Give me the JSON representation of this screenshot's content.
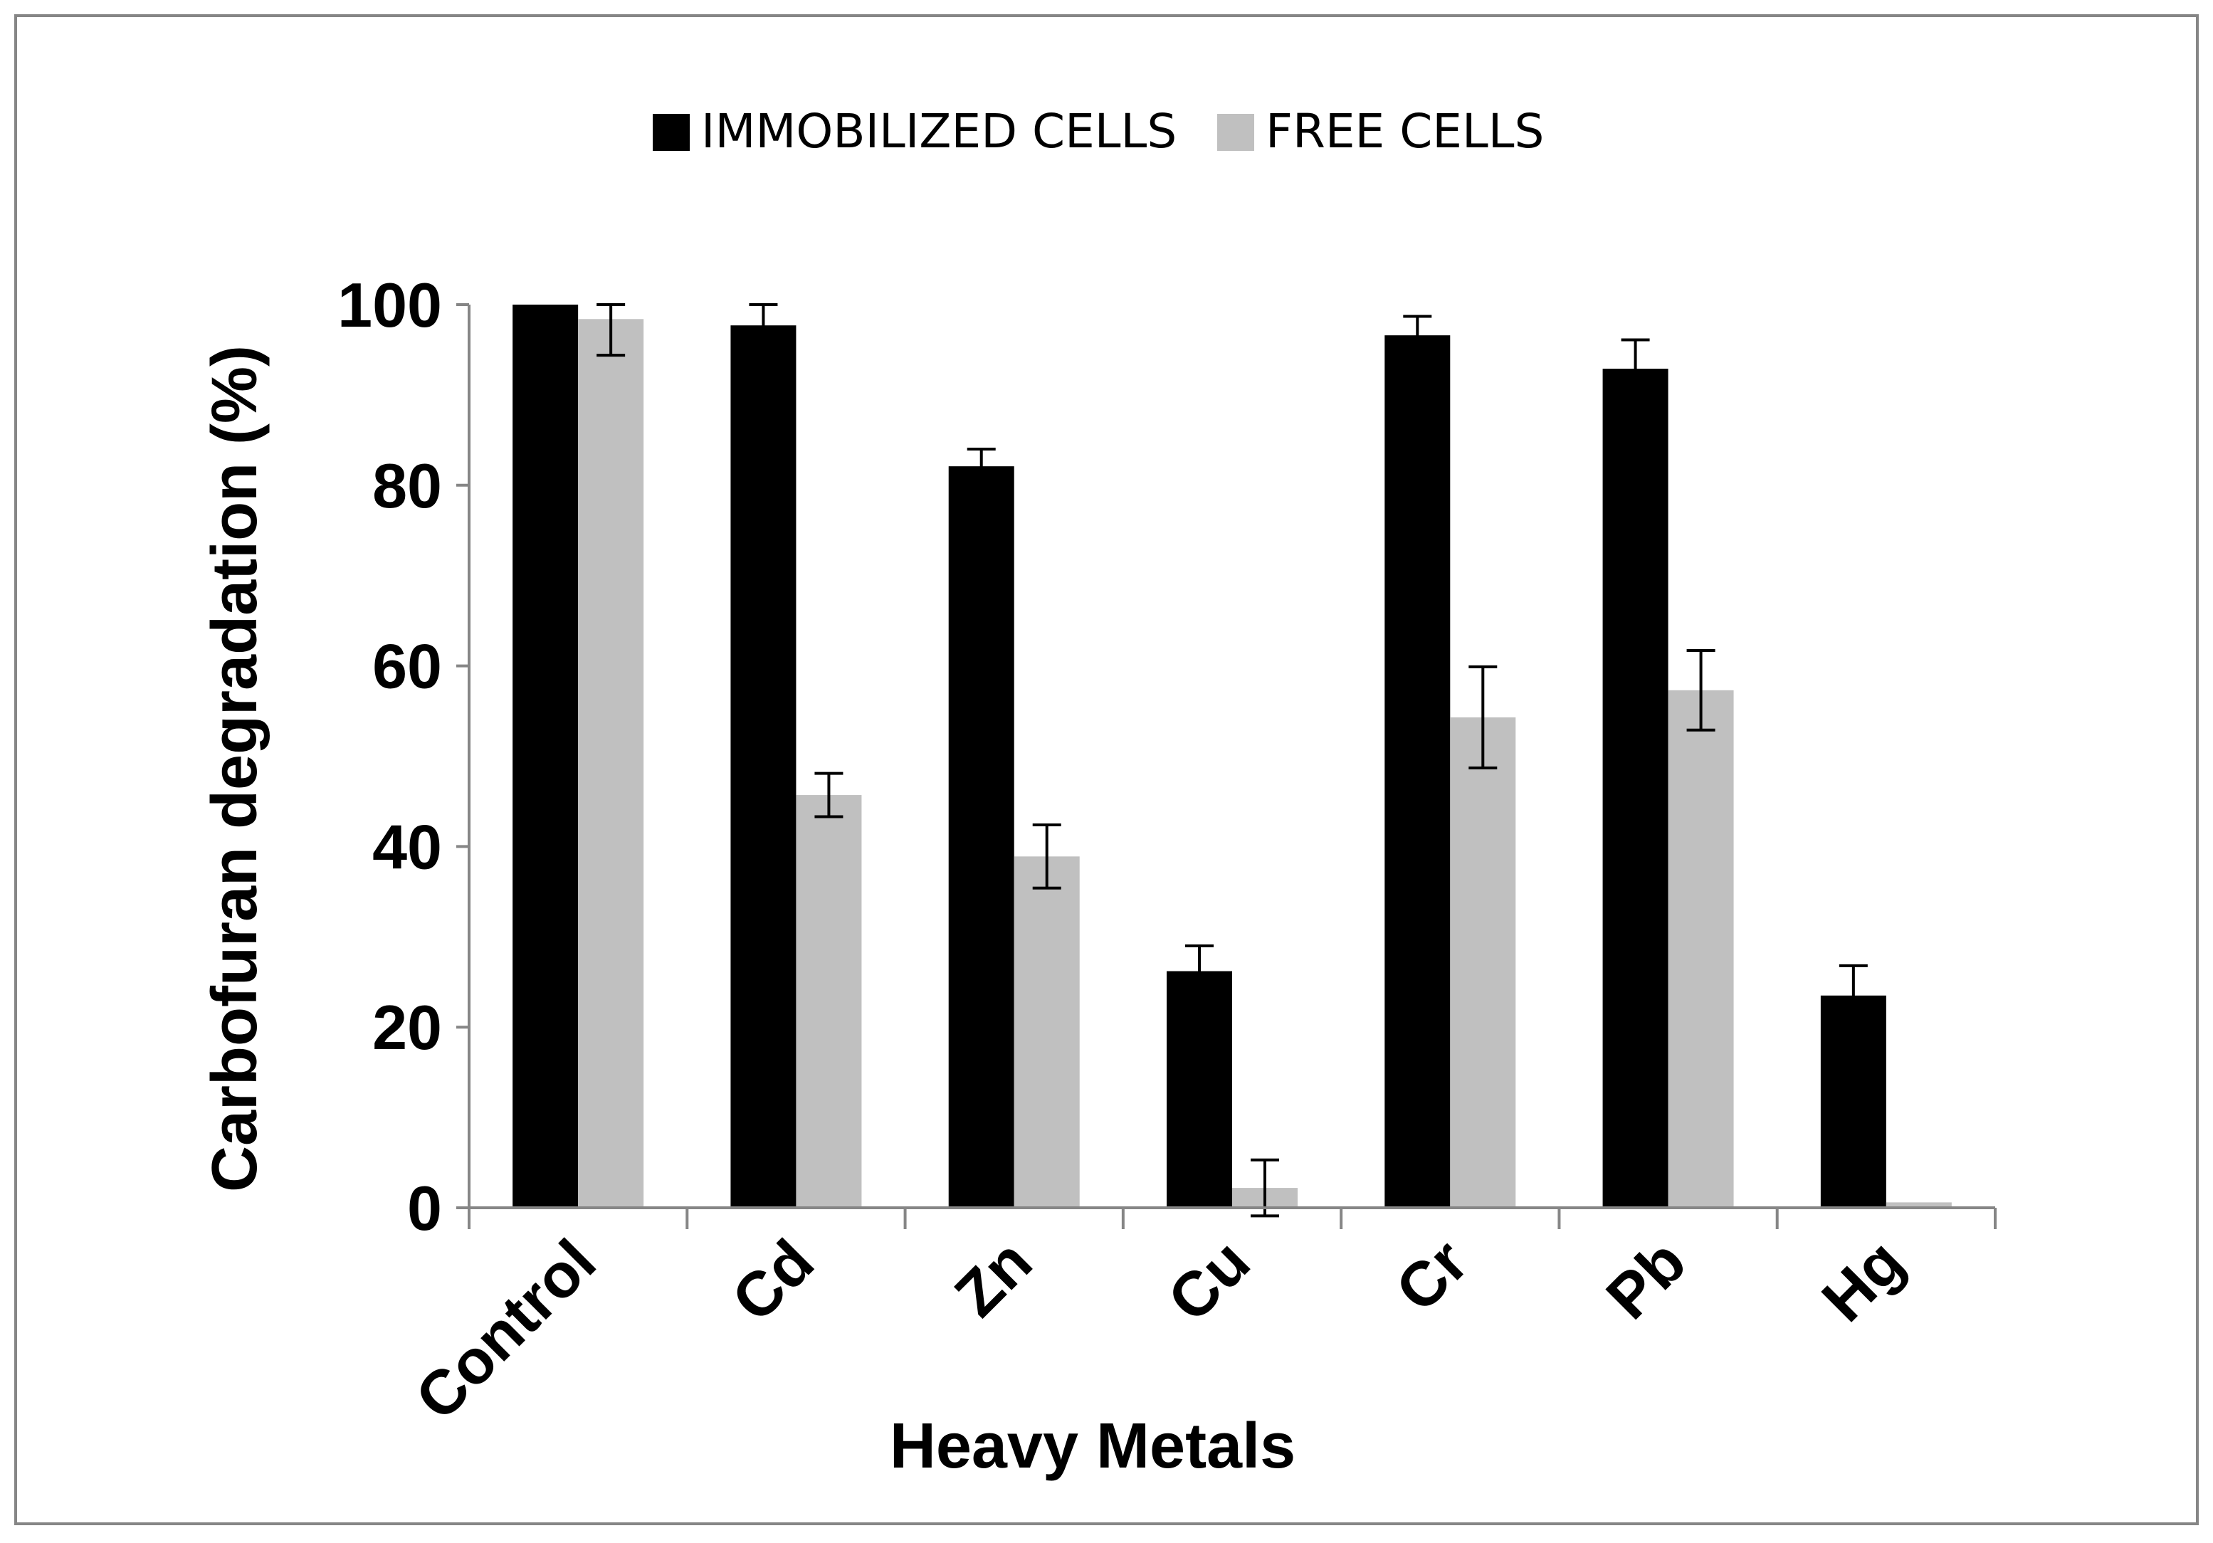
{
  "chart_data": {
    "type": "bar",
    "title": "",
    "xlabel": "Heavy Metals",
    "ylabel": "Carbofuran degradation (%)",
    "ylim": [
      0,
      100
    ],
    "yticks": [
      0,
      20,
      40,
      60,
      80,
      100
    ],
    "ytick_labels": [
      "0",
      "20",
      "40",
      "60",
      "80",
      "100"
    ],
    "grid": false,
    "legend_position": "top-center",
    "categories": [
      "Control",
      "Cd",
      "Zn",
      "Cu",
      "Cr",
      "Pb",
      "Hg"
    ],
    "series": [
      {
        "name": "IMMOBILIZED CELLS",
        "color": "#000000",
        "values": [
          100,
          97.7,
          82.1,
          26.2,
          96.6,
          92.9,
          23.5
        ],
        "errors": [
          0,
          2.3,
          1.9,
          2.8,
          2.1,
          3.2,
          3.3
        ]
      },
      {
        "name": "FREE CELLS",
        "color": "#c0c0c0",
        "values": [
          98.4,
          45.7,
          38.9,
          2.2,
          54.3,
          57.3,
          0.6
        ],
        "errors": [
          4.0,
          2.4,
          3.5,
          3.1,
          5.6,
          4.4,
          0
        ]
      }
    ]
  }
}
